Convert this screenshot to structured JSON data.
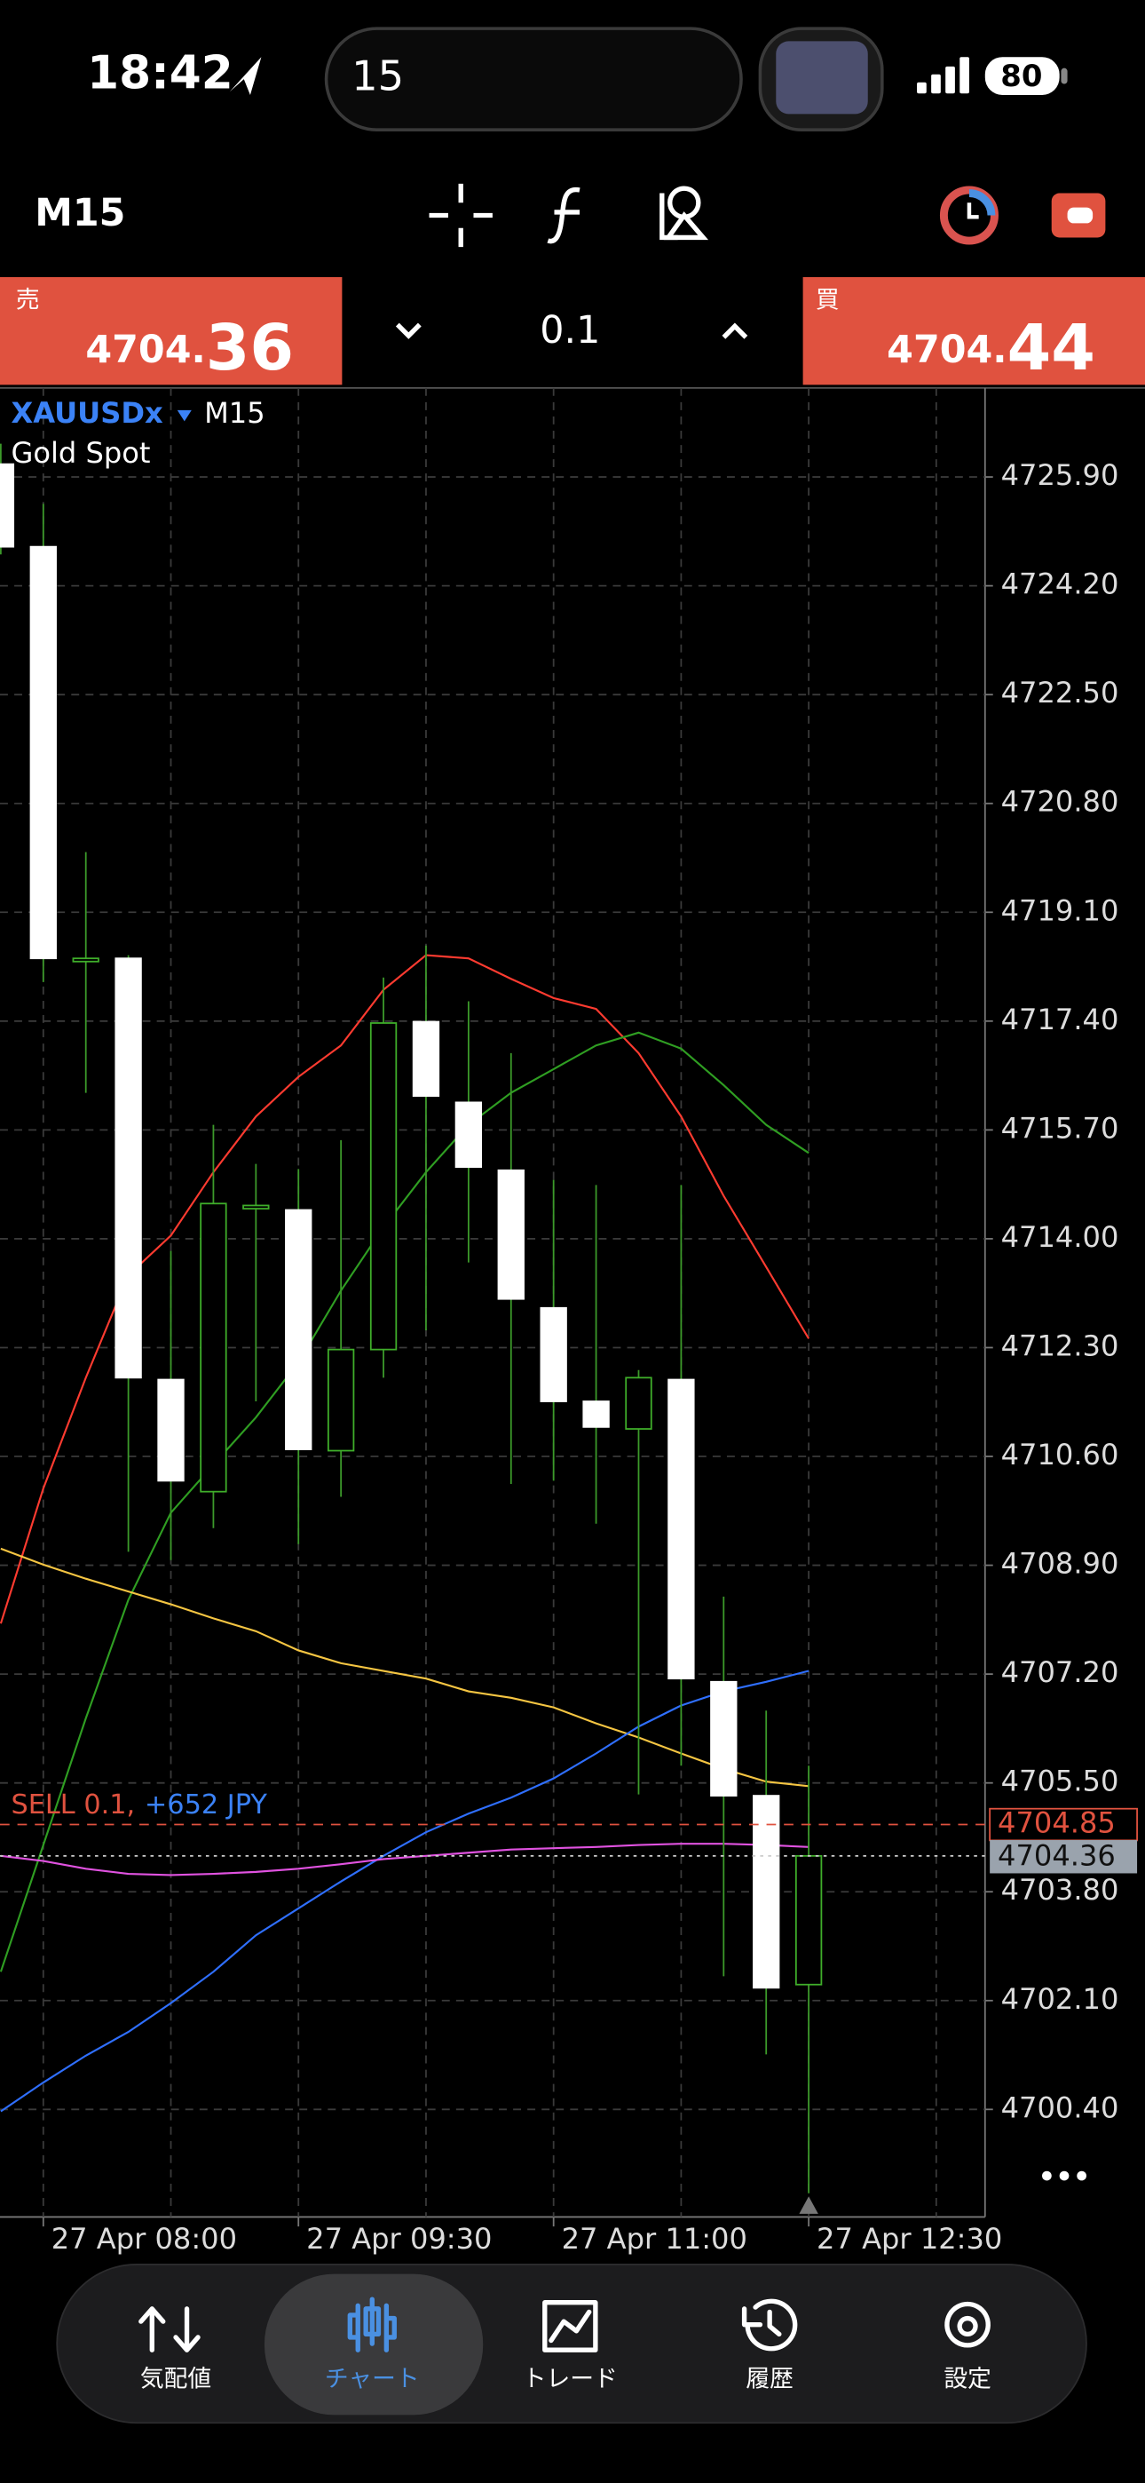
{
  "status_bar": {
    "time": "18:42",
    "search": "15",
    "battery": "80"
  },
  "toolbar": {
    "timeframe": "M15"
  },
  "trade_bar": {
    "sell": {
      "label": "売",
      "price_main": "4704.",
      "price_frac": "36"
    },
    "volume": "0.1",
    "buy": {
      "label": "買",
      "price_main": "4704.",
      "price_frac": "44"
    }
  },
  "chart_data": {
    "type": "candlestick",
    "symbol": "XAUUSDx",
    "timeframe": "M15",
    "description": "Gold Spot",
    "categories": [
      null,
      "27 Apr 08:00",
      null,
      null,
      null,
      null,
      null,
      "27 Apr 09:30",
      null,
      null,
      null,
      null,
      null,
      "27 Apr 11:00",
      null,
      null,
      null,
      null,
      null,
      "27 Apr 12:30"
    ],
    "open": [
      4726.1,
      4724.81,
      4718.33,
      4718.38,
      4711.8,
      4710.05,
      4714.47,
      4714.45,
      4710.69,
      4712.27,
      4717.39,
      4716.13,
      4715.07,
      4712.92,
      4711.46,
      4711.03,
      4711.8,
      4707.08,
      4705.3,
      4702.35
    ],
    "high": [
      4726.42,
      4725.48,
      4720.04,
      4718.43,
      4713.81,
      4715.78,
      4715.17,
      4715.09,
      4715.54,
      4718.08,
      4718.58,
      4717.71,
      4716.9,
      4714.92,
      4714.84,
      4711.95,
      4714.84,
      4708.41,
      4706.63,
      4705.77
    ],
    "low": [
      4724.69,
      4718.01,
      4716.28,
      4709.11,
      4708.98,
      4709.48,
      4711.46,
      4709.23,
      4709.97,
      4711.83,
      4712.57,
      4713.63,
      4710.17,
      4710.22,
      4709.55,
      4705.32,
      4705.77,
      4702.48,
      4701.26,
      4699.09
    ],
    "close": [
      4724.81,
      4718.38,
      4718.38,
      4711.83,
      4710.22,
      4714.55,
      4714.52,
      4710.71,
      4712.27,
      4717.37,
      4716.23,
      4715.12,
      4713.06,
      4711.46,
      4711.06,
      4711.83,
      4707.13,
      4705.3,
      4702.3,
      4704.36
    ],
    "up_color": "#3fae2a",
    "down_color": "#ffffff",
    "wick_color": "#3c9a2a",
    "overlays": [
      {
        "color": "#ff3b30",
        "values": [
          4707.99,
          4710.1,
          4711.83,
          4713.43,
          4714.05,
          4715.04,
          4715.91,
          4716.53,
          4717.02,
          4717.89,
          4718.43,
          4718.38,
          4718.06,
          4717.76,
          4717.59,
          4716.9,
          4715.91,
          4714.67,
          4713.56,
          4712.44
        ]
      },
      {
        "color": "#2f9e22",
        "values": [
          4702.55,
          4704.53,
          4706.51,
          4708.36,
          4709.72,
          4710.47,
          4711.21,
          4712.07,
          4713.19,
          4714.18,
          4715.04,
          4715.78,
          4716.28,
          4716.65,
          4717.02,
          4717.22,
          4716.97,
          4716.4,
          4715.78,
          4715.34
        ]
      },
      {
        "color": "#f5c542",
        "values": [
          4709.16,
          4708.91,
          4708.69,
          4708.49,
          4708.29,
          4708.07,
          4707.87,
          4707.57,
          4707.37,
          4707.25,
          4707.13,
          4706.93,
          4706.83,
          4706.68,
          4706.43,
          4706.21,
          4705.96,
          4705.72,
          4705.52,
          4705.45
        ]
      },
      {
        "color": "#2f6fff",
        "values": [
          4700.37,
          4700.82,
          4701.24,
          4701.61,
          4702.06,
          4702.55,
          4703.12,
          4703.54,
          4703.96,
          4704.36,
          4704.73,
          4705.02,
          4705.27,
          4705.57,
          4705.96,
          4706.38,
          4706.71,
          4706.93,
          4707.08,
          4707.25
        ]
      },
      {
        "color": "#e052e0",
        "values": [
          4704.36,
          4704.28,
          4704.16,
          4704.08,
          4704.06,
          4704.08,
          4704.11,
          4704.16,
          4704.23,
          4704.31,
          4704.36,
          4704.41,
          4704.46,
          4704.48,
          4704.5,
          4704.53,
          4704.55,
          4704.55,
          4704.53,
          4704.5
        ]
      }
    ],
    "ylim": [
      4698.72,
      4727.29
    ],
    "yticks": [
      {
        "value": 4725.9,
        "label": "4725.90"
      },
      {
        "value": 4724.2,
        "label": "4724.20"
      },
      {
        "value": 4722.5,
        "label": "4722.50"
      },
      {
        "value": 4720.8,
        "label": "4720.80"
      },
      {
        "value": 4719.1,
        "label": "4719.10"
      },
      {
        "value": 4717.4,
        "label": "4717.40"
      },
      {
        "value": 4715.7,
        "label": "4715.70"
      },
      {
        "value": 4714,
        "label": "4714.00"
      },
      {
        "value": 4712.3,
        "label": "4712.30"
      },
      {
        "value": 4710.6,
        "label": "4710.60"
      },
      {
        "value": 4708.9,
        "label": "4708.90"
      },
      {
        "value": 4707.2,
        "label": "4707.20"
      },
      {
        "value": 4705.5,
        "label": "4705.50"
      },
      {
        "value": 4703.8,
        "label": "4703.80"
      },
      {
        "value": 4702.1,
        "label": "4702.10"
      },
      {
        "value": 4700.4,
        "label": "4700.40"
      }
    ],
    "grid": true,
    "position": {
      "value": 4704.85,
      "label": "4704.85",
      "color": "#e0523f",
      "text": "SELL 0.1,",
      "profit": "+652 JPY"
    },
    "bid": {
      "value": 4704.36,
      "label": "4704.36",
      "color": "#9aa3ad"
    }
  },
  "nav": {
    "items": [
      "気配値",
      "チャート",
      "トレード",
      "履歴",
      "設定"
    ],
    "active": 1
  }
}
